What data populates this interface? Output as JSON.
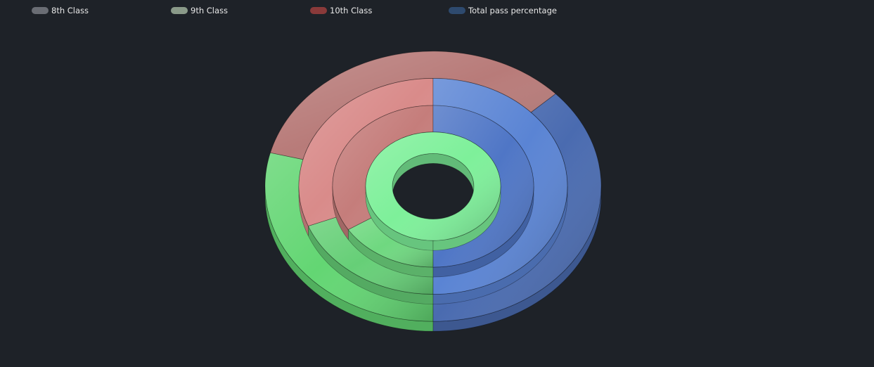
{
  "chart_data": {
    "type": "pie",
    "variant": "3d-nested-doughnut",
    "categories": [
      "8th Class",
      "9th Class",
      "10th Class",
      "Total pass percentage"
    ],
    "colors": [
      "#6a6d74",
      "#8a9a89",
      "#8a3a3a",
      "#2e4a6e"
    ],
    "rings": [
      {
        "slices": [
          {
            "label": "green",
            "value": 29,
            "color": "#63d673"
          },
          {
            "label": "red",
            "value": 34,
            "color": "#b87b79"
          },
          {
            "label": "blue",
            "value": 37,
            "color": "#4a6bb0"
          }
        ]
      },
      {
        "slices": [
          {
            "label": "green",
            "value": 19,
            "color": "#66cf77"
          },
          {
            "label": "red",
            "value": 31,
            "color": "#d98b8a"
          },
          {
            "label": "blue",
            "value": 50,
            "color": "#5a84d4"
          }
        ]
      },
      {
        "slices": [
          {
            "label": "green",
            "value": 16,
            "color": "#6fd880"
          },
          {
            "label": "red",
            "value": 34,
            "color": "#c57d7b"
          },
          {
            "label": "blue",
            "value": 50,
            "color": "#4f76c6"
          }
        ]
      },
      {
        "slices": [
          {
            "label": "green",
            "value": 100,
            "color": "#7ef09a"
          }
        ]
      }
    ]
  },
  "legend": {
    "items": [
      {
        "label": "8th Class",
        "color": "#6a6d74"
      },
      {
        "label": "9th Class",
        "color": "#8a9a89"
      },
      {
        "label": "10th Class",
        "color": "#8a3a3a"
      },
      {
        "label": "Total pass percentage",
        "color": "#2e4a6e"
      }
    ]
  }
}
